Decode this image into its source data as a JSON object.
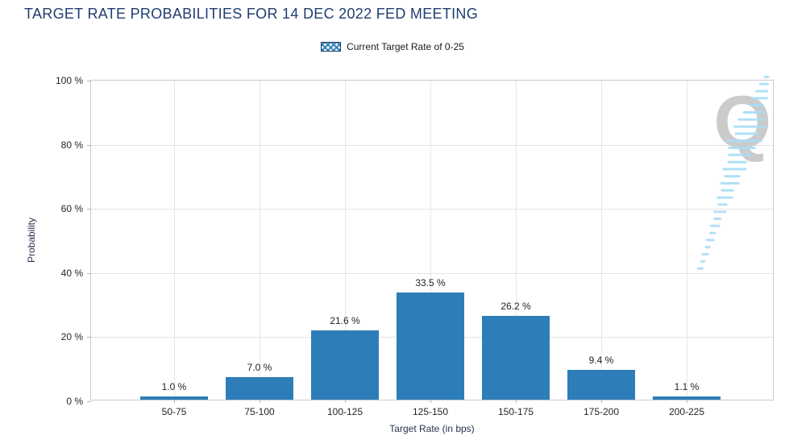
{
  "header": {
    "title": "TARGET RATE PROBABILITIES FOR 14 DEC 2022 FED MEETING"
  },
  "legend": {
    "label": "Current Target Rate of 0-25"
  },
  "watermark": {
    "letter": "Q"
  },
  "colors": {
    "title": "#1e3e70",
    "bar": "#2d7eb8",
    "grid": "#e3e3e3",
    "plot_border": "#c9c9c9",
    "watermark_q": "#cbcbcb",
    "watermark_swoosh": "#a9ddf6",
    "legend_swatch_border": "#17375e"
  },
  "chart_data": {
    "type": "bar",
    "title": "TARGET RATE PROBABILITIES FOR 14 DEC 2022 FED MEETING",
    "categories": [
      "50-75",
      "75-100",
      "100-125",
      "125-150",
      "150-175",
      "175-200",
      "200-225"
    ],
    "values": [
      1.0,
      7.0,
      21.6,
      33.5,
      26.2,
      9.4,
      1.1
    ],
    "value_labels": [
      "1.0 %",
      "7.0 %",
      "21.6 %",
      "33.5 %",
      "26.2 %",
      "9.4 %",
      "1.1 %"
    ],
    "xlabel": "Target Rate (in bps)",
    "ylabel": "Probability",
    "ylim": [
      0,
      100
    ],
    "yticks": [
      0,
      20,
      40,
      60,
      80,
      100
    ],
    "ytick_labels": [
      "0 %",
      "20 %",
      "40 %",
      "60 %",
      "80 %",
      "100 %"
    ],
    "legend": [
      "Current Target Rate of 0-25"
    ],
    "legend_position": "top-center",
    "grid": true,
    "bar_color": "#2d7eb8"
  }
}
